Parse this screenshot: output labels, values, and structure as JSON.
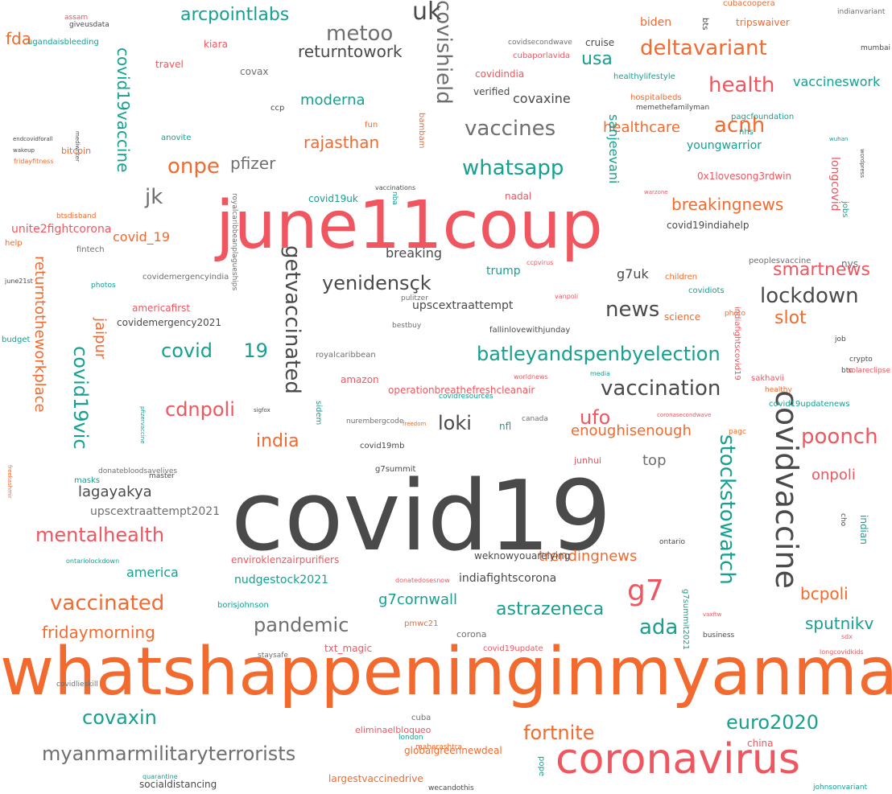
{
  "palette": {
    "dark": "#4a4a4a",
    "gray": "#6f6f6f",
    "orange": "#f26a2e",
    "red": "#f0565f",
    "teal": "#16a090"
  },
  "words": [
    {
      "t": "covid19",
      "c": "dark"
    },
    {
      "t": "whatshappeninginmyanmar",
      "c": "orange"
    },
    {
      "t": "june11coup",
      "c": "red"
    },
    {
      "t": "coronavirus",
      "c": "red"
    },
    {
      "t": "covidvaccine",
      "c": "dark"
    },
    {
      "t": "covishield",
      "c": "gray"
    },
    {
      "t": "getvaccinated",
      "c": "dark"
    },
    {
      "t": "stockstowatch",
      "c": "teal"
    },
    {
      "t": "myanmarmilitaryterrorists",
      "c": "gray"
    },
    {
      "t": "vaccination",
      "c": "dark"
    },
    {
      "t": "batleyandspenbyelection",
      "c": "teal"
    },
    {
      "t": "deltavariant",
      "c": "orange"
    },
    {
      "t": "lockdown",
      "c": "dark"
    },
    {
      "t": "vaccines",
      "c": "gray"
    },
    {
      "t": "yenidensçk",
      "c": "dark"
    },
    {
      "t": "g7",
      "c": "red"
    },
    {
      "t": "vaccinated",
      "c": "orange"
    },
    {
      "t": "pandemic",
      "c": "gray"
    },
    {
      "t": "mentalhealth",
      "c": "red"
    },
    {
      "t": "covid19vic",
      "c": "teal"
    },
    {
      "t": "returntotheworkplace",
      "c": "orange"
    },
    {
      "t": "health",
      "c": "red"
    },
    {
      "t": "smartnews",
      "c": "red"
    },
    {
      "t": "poonch",
      "c": "red"
    },
    {
      "t": "whatsapp",
      "c": "teal"
    },
    {
      "t": "fortnite",
      "c": "orange"
    },
    {
      "t": "euro2020",
      "c": "teal"
    },
    {
      "t": "metoo",
      "c": "gray"
    },
    {
      "t": "cdnpoli",
      "c": "red"
    },
    {
      "t": "covid19",
      "c": "teal"
    },
    {
      "t": "ufo",
      "c": "red"
    },
    {
      "t": "loki",
      "c": "dark"
    },
    {
      "t": "news",
      "c": "dark"
    },
    {
      "t": "acnh",
      "c": "orange"
    },
    {
      "t": "onpe",
      "c": "orange"
    },
    {
      "t": "jk",
      "c": "gray"
    },
    {
      "t": "uk",
      "c": "dark"
    },
    {
      "t": "usa",
      "c": "teal"
    },
    {
      "t": "india",
      "c": "orange"
    },
    {
      "t": "returntowork",
      "c": "dark"
    },
    {
      "t": "arcpointlabs",
      "c": "teal"
    },
    {
      "t": "rajasthan",
      "c": "orange"
    },
    {
      "t": "breakingnews",
      "c": "orange"
    },
    {
      "t": "covaxin",
      "c": "teal"
    },
    {
      "t": "astrazeneca",
      "c": "teal"
    },
    {
      "t": "ada",
      "c": "teal"
    },
    {
      "t": "sputnikv",
      "c": "teal"
    },
    {
      "t": "bcpoli",
      "c": "orange"
    },
    {
      "t": "fridaymorning",
      "c": "orange"
    },
    {
      "t": "covid19vaccine",
      "c": "teal"
    },
    {
      "t": "slot",
      "c": "orange"
    },
    {
      "t": "pfizer",
      "c": "gray"
    },
    {
      "t": "healthcare",
      "c": "orange"
    },
    {
      "t": "moderna",
      "c": "teal"
    },
    {
      "t": "covaxine",
      "c": "dark"
    },
    {
      "t": "onpoli",
      "c": "red"
    },
    {
      "t": "g7cornwall",
      "c": "teal"
    },
    {
      "t": "trendingnews",
      "c": "orange"
    },
    {
      "t": "enoughisenough",
      "c": "orange"
    },
    {
      "t": "jaipur",
      "c": "orange"
    },
    {
      "t": "lagayakya",
      "c": "dark"
    },
    {
      "t": "top",
      "c": "gray"
    },
    {
      "t": "covid_19",
      "c": "orange"
    },
    {
      "t": "sanjeevani",
      "c": "teal"
    },
    {
      "t": "fda",
      "c": "orange"
    },
    {
      "t": "vaccineswork",
      "c": "teal"
    },
    {
      "t": "youngwarrior",
      "c": "teal"
    },
    {
      "t": "breaking",
      "c": "dark"
    },
    {
      "t": "g7uk",
      "c": "dark"
    },
    {
      "t": "america",
      "c": "teal"
    },
    {
      "t": "indiafightscorona",
      "c": "dark"
    },
    {
      "t": "nudgestock2021",
      "c": "teal"
    },
    {
      "t": "upscextraattempt2021",
      "c": "gray"
    },
    {
      "t": "unite2fightcorona",
      "c": "red"
    },
    {
      "t": "trump",
      "c": "teal"
    },
    {
      "t": "upscextraattempt",
      "c": "dark"
    },
    {
      "t": "biden",
      "c": "orange"
    },
    {
      "t": "covidemergency2021",
      "c": "dark"
    },
    {
      "t": "longcovid",
      "c": "red"
    },
    {
      "t": "0x1lovesong3rdwin",
      "c": "red"
    },
    {
      "t": "covidindia",
      "c": "red"
    },
    {
      "t": "tripswaiver",
      "c": "orange"
    },
    {
      "t": "covid19indiahelp",
      "c": "dark"
    },
    {
      "t": "nys",
      "c": "gray"
    },
    {
      "t": "covax",
      "c": "gray"
    },
    {
      "t": "nfl",
      "c": "teal"
    },
    {
      "t": "operationbreathefreshcleanair",
      "c": "red"
    },
    {
      "t": "globalgreennewdeal",
      "c": "orange"
    },
    {
      "t": "largestvaccinedrive",
      "c": "orange"
    },
    {
      "t": "enviroklenzairpurifiers",
      "c": "red"
    },
    {
      "t": "weknowyouarelying",
      "c": "dark"
    },
    {
      "t": "socialdistancing",
      "c": "dark"
    },
    {
      "t": "americafirst",
      "c": "red"
    },
    {
      "t": "kiara",
      "c": "red"
    },
    {
      "t": "travel",
      "c": "red"
    },
    {
      "t": "healthylifestyle",
      "c": "teal"
    },
    {
      "t": "hospitalbeds",
      "c": "orange"
    },
    {
      "t": "verified",
      "c": "dark"
    },
    {
      "t": "cruise",
      "c": "dark"
    },
    {
      "t": "cubaporlavida",
      "c": "red"
    },
    {
      "t": "covidsecondwave",
      "c": "gray"
    },
    {
      "t": "cubacoopera",
      "c": "orange"
    },
    {
      "t": "bts",
      "c": "dark"
    },
    {
      "t": "amazon",
      "c": "red"
    },
    {
      "t": "science",
      "c": "orange"
    },
    {
      "t": "children",
      "c": "orange"
    },
    {
      "t": "ontario",
      "c": "dark"
    },
    {
      "t": "sidem",
      "c": "teal"
    },
    {
      "t": "covid19uk",
      "c": "teal"
    },
    {
      "t": "nadal",
      "c": "red"
    },
    {
      "t": "nba",
      "c": "teal"
    },
    {
      "t": "bitcoin",
      "c": "orange"
    },
    {
      "t": "ugandaisbleeding",
      "c": "teal"
    },
    {
      "t": "assam",
      "c": "red"
    },
    {
      "t": "covid19update",
      "c": "red"
    },
    {
      "t": "pmwc21",
      "c": "orange"
    },
    {
      "t": "txt_magic",
      "c": "red"
    },
    {
      "t": "corona",
      "c": "gray"
    },
    {
      "t": "cuba",
      "c": "gray"
    },
    {
      "t": "eliminaelbloqueo",
      "c": "red"
    },
    {
      "t": "london",
      "c": "teal"
    },
    {
      "t": "maharashtra",
      "c": "orange"
    },
    {
      "t": "pope",
      "c": "teal"
    },
    {
      "t": "china",
      "c": "red"
    },
    {
      "t": "junhui",
      "c": "red"
    },
    {
      "t": "pagcfoundation",
      "c": "teal"
    },
    {
      "t": "nhs",
      "c": "teal"
    },
    {
      "t": "covidiots",
      "c": "teal"
    },
    {
      "t": "sakhavii",
      "c": "red"
    },
    {
      "t": "healthy",
      "c": "orange"
    },
    {
      "t": "covid19updatenews",
      "c": "teal"
    },
    {
      "t": "jobs",
      "c": "teal"
    },
    {
      "t": "indian",
      "c": "teal"
    },
    {
      "t": "g7summit2021",
      "c": "teal"
    },
    {
      "t": "borisjohnson",
      "c": "teal"
    },
    {
      "t": "masks",
      "c": "teal"
    },
    {
      "t": "budget",
      "c": "teal"
    },
    {
      "t": "help",
      "c": "orange"
    },
    {
      "t": "photos",
      "c": "teal"
    },
    {
      "t": "btsdisband",
      "c": "orange"
    },
    {
      "t": "bambam",
      "c": "orange"
    },
    {
      "t": "fun",
      "c": "orange"
    },
    {
      "t": "anovite",
      "c": "teal"
    },
    {
      "t": "covidresources",
      "c": "teal"
    },
    {
      "t": "indiafightscovid19",
      "c": "red"
    },
    {
      "t": "peoplesvaccine",
      "c": "gray"
    },
    {
      "t": "royalcaribbean",
      "c": "gray"
    },
    {
      "t": "fallinlovewithjunday",
      "c": "dark"
    },
    {
      "t": "pulitzer",
      "c": "gray"
    },
    {
      "t": "bestbuy",
      "c": "gray"
    },
    {
      "t": "royalcaribbeanplagueships",
      "c": "gray"
    },
    {
      "t": "covidemergencyindia",
      "c": "gray"
    },
    {
      "t": "fintech",
      "c": "gray"
    },
    {
      "t": "giveusdata",
      "c": "dark"
    },
    {
      "t": "ccp",
      "c": "dark"
    },
    {
      "t": "memethefamilyman",
      "c": "dark"
    },
    {
      "t": "indianvariant",
      "c": "gray"
    },
    {
      "t": "mumbai",
      "c": "dark"
    },
    {
      "t": "vaccinations",
      "c": "dark"
    },
    {
      "t": "nurembergcode",
      "c": "gray"
    },
    {
      "t": "covid19mb",
      "c": "dark"
    },
    {
      "t": "g7summit",
      "c": "dark"
    },
    {
      "t": "donatebloodsavelives",
      "c": "gray"
    },
    {
      "t": "master",
      "c": "dark"
    },
    {
      "t": "canada",
      "c": "gray"
    },
    {
      "t": "staysafe",
      "c": "gray"
    },
    {
      "t": "covidlieskill",
      "c": "gray"
    },
    {
      "t": "quarantine",
      "c": "teal"
    },
    {
      "t": "wecandothis",
      "c": "dark"
    },
    {
      "t": "johnsonvariant",
      "c": "teal"
    },
    {
      "t": "longcovidkids",
      "c": "red"
    },
    {
      "t": "sdx",
      "c": "red"
    },
    {
      "t": "business",
      "c": "dark"
    },
    {
      "t": "cho",
      "c": "dark"
    },
    {
      "t": "crypto",
      "c": "dark"
    },
    {
      "t": "btc",
      "c": "dark"
    },
    {
      "t": "solareclipse",
      "c": "red"
    },
    {
      "t": "job",
      "c": "dark"
    },
    {
      "t": "photo",
      "c": "orange"
    },
    {
      "t": "media",
      "c": "teal"
    },
    {
      "t": "worldnews",
      "c": "red"
    },
    {
      "t": "vanpoli",
      "c": "red"
    },
    {
      "t": "ccpvirus",
      "c": "red"
    },
    {
      "t": "warzone",
      "c": "red"
    },
    {
      "t": "wuhan",
      "c": "teal"
    },
    {
      "t": "wordpress",
      "c": "dark"
    },
    {
      "t": "pagc",
      "c": "orange"
    },
    {
      "t": "coronasecondwave",
      "c": "red"
    },
    {
      "t": "freedom",
      "c": "orange"
    },
    {
      "t": "donatedosesnow",
      "c": "red"
    },
    {
      "t": "vaxftw",
      "c": "red"
    },
    {
      "t": "ontariolockdown",
      "c": "teal"
    },
    {
      "t": "freekashmir",
      "c": "orange"
    },
    {
      "t": "sigfox",
      "c": "dark"
    },
    {
      "t": "pfizervaccine",
      "c": "teal"
    },
    {
      "t": "june21st",
      "c": "dark"
    },
    {
      "t": "endcovidforall",
      "c": "dark"
    },
    {
      "t": "wakeup",
      "c": "dark"
    },
    {
      "t": "fridayfitness",
      "c": "orange"
    },
    {
      "t": "mediwriter",
      "c": "dark"
    }
  ]
}
